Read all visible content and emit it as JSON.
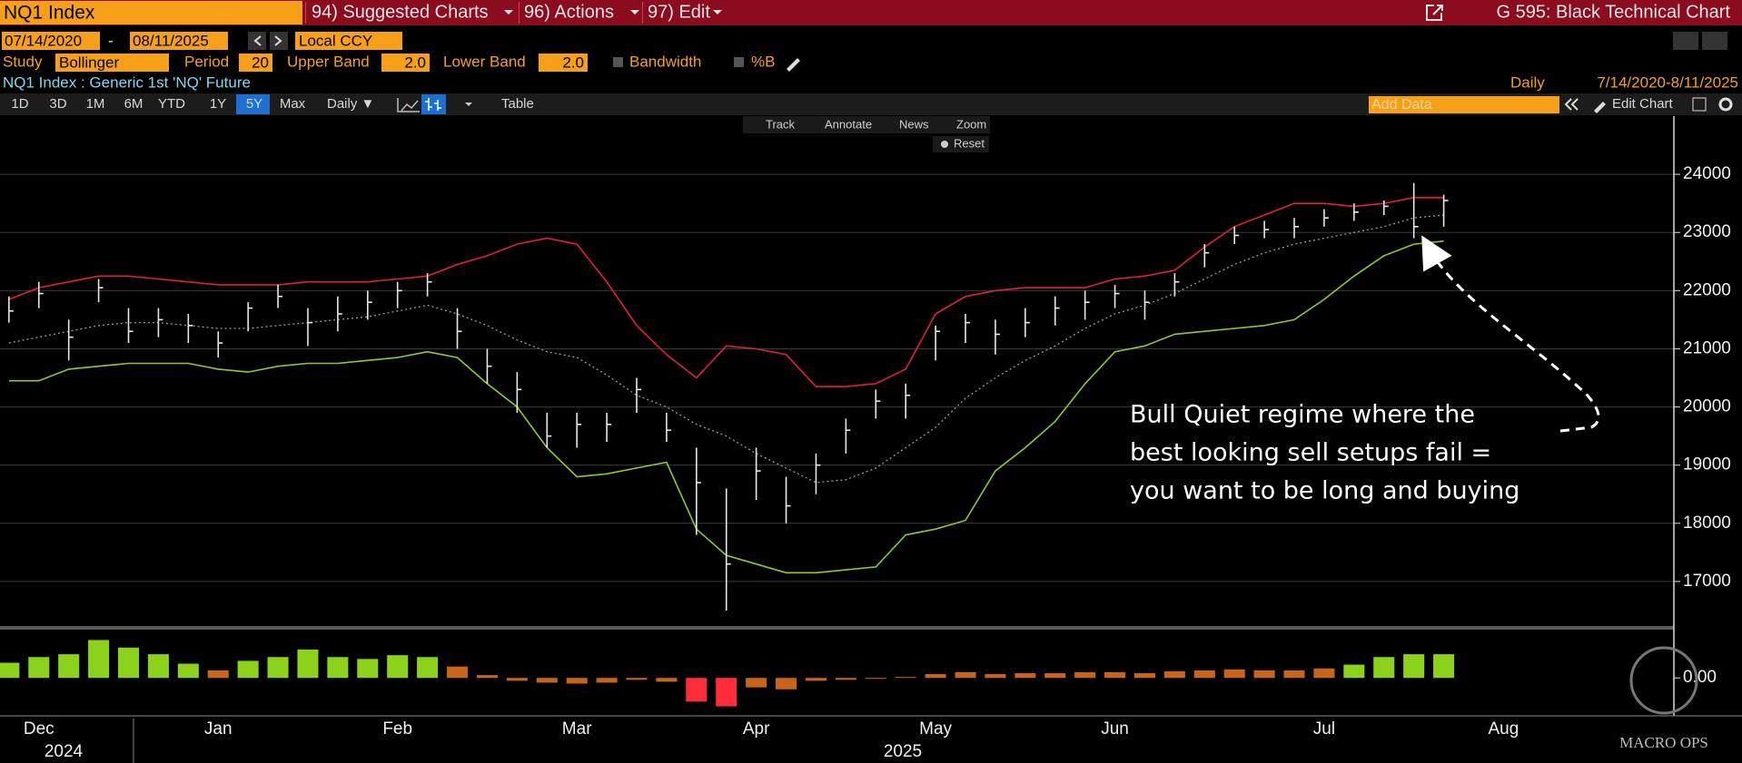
{
  "toolbar": {
    "ticker": "NQ1 Index",
    "menus": [
      "94) Suggested Charts",
      "96) Actions",
      "97) Edit"
    ],
    "function_title": "G 595: Black Technical Chart",
    "start_date": "07/14/2020",
    "end_date": "08/11/2025",
    "currency": "Local CCY"
  },
  "study_bar": {
    "study_label": "Study",
    "study": "Bollinger",
    "period_label": "Period",
    "period": "20",
    "upper_label": "Upper Band",
    "upper": "2.0",
    "lower_label": "Lower Band",
    "lower": "2.0",
    "bandwidth": "Bandwidth",
    "percent_b": "%B"
  },
  "info_bar": {
    "security": "NQ1 Index : Generic 1st 'NQ' Future",
    "frequency": "Daily",
    "range": "7/14/2020-8/11/2025"
  },
  "range_bar": {
    "buttons": [
      "1D",
      "3D",
      "1M",
      "6M",
      "YTD",
      "1Y",
      "5Y",
      "Max"
    ],
    "period": "Daily ▼",
    "table": "Table",
    "add_data": "Add Data",
    "edit_chart": "Edit Chart"
  },
  "chart_tools": [
    "Track",
    "Annotate",
    "News",
    "Zoom",
    "Reset"
  ],
  "annotation": [
    "Bull Quiet regime where the",
    "best looking sell setups fail =",
    "you want to be long and buying"
  ],
  "watermark": "MACRO OPS",
  "chart_data": [
    {
      "type": "ohlc",
      "categories": [
        null,
        "Dec",
        null,
        null,
        null,
        null,
        null,
        "Jan",
        null,
        null,
        null,
        null,
        null,
        "Feb",
        null,
        null,
        null,
        null,
        null,
        "Mar",
        null,
        null,
        null,
        null,
        null,
        "Apr",
        null,
        null,
        null,
        null,
        null,
        "May",
        null,
        null,
        null,
        null,
        null,
        "Jun",
        null,
        null,
        null,
        null,
        null,
        null,
        "Jul",
        null,
        null,
        null,
        null,
        null,
        "Aug",
        null,
        null,
        null,
        null,
        null
      ],
      "year_labels": [
        "2024",
        "2025"
      ],
      "ohlc": {
        "color": "#e8e8e8",
        "high": [
          21900,
          22150,
          21500,
          22200,
          21700,
          21700,
          21600,
          21300,
          21800,
          22100,
          21700,
          21900,
          22000,
          22150,
          22300,
          21700,
          21000,
          20600,
          19900,
          19900,
          19900,
          20500,
          19900,
          19300,
          18600,
          19300,
          18800,
          19200,
          19800,
          20300,
          20400,
          21400,
          21600,
          21500,
          21700,
          21900,
          22000,
          22100,
          22000,
          22300,
          22800,
          23100,
          23200,
          23250,
          23400,
          23500,
          23550,
          23850,
          23650,
          null,
          null,
          null,
          null,
          null,
          null,
          null
        ],
        "low": [
          21450,
          21700,
          20800,
          21800,
          21100,
          21200,
          21100,
          20850,
          21300,
          21700,
          21050,
          21300,
          21500,
          21700,
          21900,
          21000,
          20400,
          19900,
          19300,
          19300,
          19400,
          19900,
          19400,
          17800,
          16500,
          18400,
          18000,
          18500,
          19200,
          19800,
          19800,
          20800,
          21100,
          20900,
          21200,
          21400,
          21500,
          21700,
          21500,
          21900,
          22400,
          22800,
          22900,
          22900,
          23100,
          23200,
          23300,
          22900,
          23100,
          null,
          null,
          null,
          null,
          null,
          null,
          null
        ],
        "close": [
          21650,
          21950,
          21200,
          22050,
          21300,
          21500,
          21400,
          21100,
          21700,
          21900,
          21450,
          21600,
          21800,
          22000,
          22150,
          21300,
          20700,
          20300,
          19500,
          19700,
          19700,
          20300,
          19600,
          18700,
          17300,
          18900,
          18300,
          19000,
          19600,
          20100,
          20200,
          21300,
          21450,
          21250,
          21450,
          21700,
          21800,
          21950,
          21800,
          22150,
          22650,
          22950,
          23050,
          23100,
          23250,
          23350,
          23450,
          23100,
          23550,
          null,
          null,
          null,
          null,
          null,
          null,
          null
        ]
      },
      "bands": {
        "upper": {
          "color": "#e0203a",
          "values": [
            21850,
            22050,
            22150,
            22250,
            22250,
            22200,
            22150,
            22100,
            22100,
            22100,
            22150,
            22150,
            22150,
            22200,
            22250,
            22450,
            22600,
            22800,
            22900,
            22800,
            22150,
            21400,
            20900,
            20500,
            21050,
            21000,
            20900,
            20350,
            20350,
            20400,
            20650,
            21600,
            21900,
            22000,
            22050,
            22050,
            22050,
            22200,
            22250,
            22350,
            22750,
            23100,
            23300,
            23500,
            23500,
            23450,
            23500,
            23600,
            23600,
            null,
            null,
            null,
            null,
            null,
            null,
            null
          ]
        },
        "middle": {
          "color": "#9a9a9a",
          "values": [
            21100,
            21200,
            21300,
            21400,
            21450,
            21450,
            21400,
            21350,
            21350,
            21400,
            21450,
            21500,
            21550,
            21650,
            21750,
            21600,
            21400,
            21150,
            20950,
            20850,
            20550,
            20200,
            20000,
            19700,
            19500,
            19200,
            18950,
            18700,
            18750,
            18950,
            19300,
            19650,
            20150,
            20500,
            20800,
            21050,
            21350,
            21600,
            21750,
            21950,
            22200,
            22450,
            22650,
            22800,
            22900,
            23000,
            23100,
            23250,
            23300,
            null,
            null,
            null,
            null,
            null,
            null,
            null
          ]
        },
        "lower": {
          "color": "#8ccc2a",
          "values": [
            20450,
            20450,
            20650,
            20700,
            20750,
            20750,
            20750,
            20650,
            20600,
            20700,
            20750,
            20750,
            20800,
            20850,
            20950,
            20850,
            20400,
            20000,
            19300,
            18800,
            18850,
            18950,
            19050,
            17900,
            17450,
            17300,
            17150,
            17150,
            17200,
            17250,
            17800,
            17900,
            18050,
            18900,
            19300,
            19750,
            20400,
            20950,
            21050,
            21250,
            21300,
            21350,
            21400,
            21500,
            21850,
            22250,
            22600,
            22800,
            22850,
            null,
            null,
            null,
            null,
            null,
            null,
            null
          ]
        }
      },
      "ylim": [
        16250,
        25000
      ],
      "yticks": [
        17000,
        18000,
        19000,
        20000,
        21000,
        22000,
        23000,
        24000
      ],
      "grid": true
    },
    {
      "type": "bar",
      "values": [
        0.16,
        0.22,
        0.25,
        0.4,
        0.32,
        0.25,
        0.15,
        0.08,
        0.18,
        0.22,
        0.3,
        0.22,
        0.2,
        0.24,
        0.22,
        0.12,
        0.03,
        -0.03,
        -0.05,
        -0.06,
        -0.05,
        -0.02,
        -0.04,
        -0.25,
        -0.3,
        -0.1,
        -0.12,
        -0.03,
        -0.02,
        -0.01,
        0.01,
        0.04,
        0.06,
        0.04,
        0.05,
        0.05,
        0.06,
        0.06,
        0.05,
        0.07,
        0.08,
        0.09,
        0.08,
        0.08,
        0.1,
        0.14,
        0.22,
        0.25,
        0.25,
        null,
        null,
        null,
        null,
        null,
        null,
        null
      ],
      "colors": [
        "#8cd21c",
        "#8cd21c",
        "#8cd21c",
        "#8cd21c",
        "#8cd21c",
        "#8cd21c",
        "#8cd21c",
        "#c8651a",
        "#8cd21c",
        "#8cd21c",
        "#8cd21c",
        "#8cd21c",
        "#8cd21c",
        "#8cd21c",
        "#8cd21c",
        "#c8651a",
        "#c8651a",
        "#c8651a",
        "#c8651a",
        "#c8651a",
        "#c8651a",
        "#c8651a",
        "#c8651a",
        "#ff2d3c",
        "#ff2d3c",
        "#c8651a",
        "#c8651a",
        "#c8651a",
        "#c8651a",
        "#c8651a",
        "#c8651a",
        "#c8651a",
        "#c8651a",
        "#c8651a",
        "#c8651a",
        "#c8651a",
        "#c8651a",
        "#c8651a",
        "#c8651a",
        "#c8651a",
        "#c8651a",
        "#c8651a",
        "#c8651a",
        "#c8651a",
        "#c8651a",
        "#8cd21c",
        "#8cd21c",
        "#8cd21c",
        "#8cd21c",
        null,
        null,
        null,
        null,
        null,
        null,
        null
      ],
      "ylim": [
        -0.4,
        0.5
      ],
      "yticks": [
        {
          "value": 0,
          "label": "0.00"
        }
      ],
      "grid": false
    }
  ]
}
